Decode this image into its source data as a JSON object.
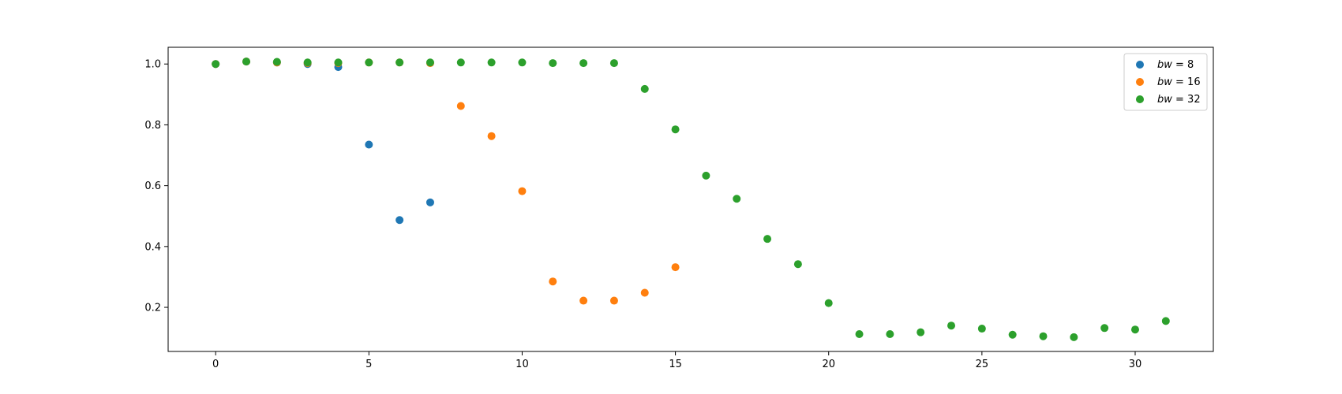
{
  "chart_data": {
    "type": "scatter",
    "title": "",
    "xlabel": "",
    "ylabel": "",
    "xlim": [
      -1.55,
      32.55
    ],
    "ylim": [
      0.055,
      1.055
    ],
    "xticks": [
      0,
      5,
      10,
      15,
      20,
      25,
      30
    ],
    "xtick_labels": [
      "0",
      "5",
      "10",
      "15",
      "20",
      "25",
      "30"
    ],
    "yticks": [
      0.2,
      0.4,
      0.6,
      0.8,
      1.0
    ],
    "ytick_labels": [
      "0.2",
      "0.4",
      "0.6",
      "0.8",
      "1.0"
    ],
    "grid": false,
    "legend_position": "top-right",
    "series": [
      {
        "name": "bw = 8",
        "legend_var": "bw",
        "legend_eq": " = 8",
        "color": "#1f77b4",
        "x": [
          0,
          1,
          2,
          3,
          4,
          5,
          6,
          7
        ],
        "y": [
          1.0,
          1.008,
          1.005,
          1.0,
          0.99,
          0.735,
          0.487,
          0.545
        ]
      },
      {
        "name": "bw = 16",
        "legend_var": "bw",
        "legend_eq": " = 16",
        "color": "#ff7f0e",
        "x": [
          0,
          1,
          2,
          3,
          4,
          5,
          6,
          7,
          8,
          9,
          10,
          11,
          12,
          13,
          14,
          15
        ],
        "y": [
          1.0,
          1.008,
          1.005,
          1.003,
          1.003,
          1.005,
          1.005,
          1.003,
          0.862,
          0.763,
          0.582,
          0.285,
          0.222,
          0.222,
          0.248,
          0.332
        ]
      },
      {
        "name": "bw = 32",
        "legend_var": "bw",
        "legend_eq": " = 32",
        "color": "#2ca02c",
        "x": [
          0,
          1,
          2,
          3,
          4,
          5,
          6,
          7,
          8,
          9,
          10,
          11,
          12,
          13,
          14,
          15,
          16,
          17,
          18,
          19,
          20,
          21,
          22,
          23,
          24,
          25,
          26,
          27,
          28,
          29,
          30,
          31
        ],
        "y": [
          1.0,
          1.008,
          1.007,
          1.005,
          1.005,
          1.005,
          1.005,
          1.005,
          1.005,
          1.005,
          1.005,
          1.003,
          1.003,
          1.003,
          0.918,
          0.785,
          0.633,
          0.557,
          0.425,
          0.342,
          0.214,
          0.112,
          0.112,
          0.118,
          0.14,
          0.13,
          0.11,
          0.105,
          0.102,
          0.132,
          0.127,
          0.155
        ]
      }
    ]
  }
}
